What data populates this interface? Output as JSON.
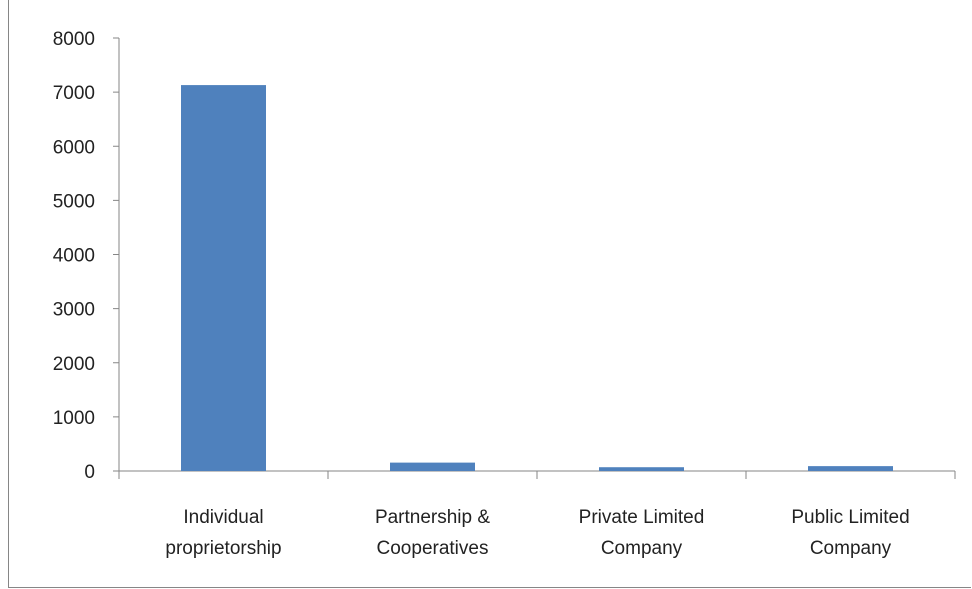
{
  "chart_data": {
    "type": "bar",
    "title": "",
    "xlabel": "",
    "ylabel": "",
    "categories": [
      [
        "Individual",
        "proprietorship"
      ],
      [
        "Partnership &",
        "Cooperatives"
      ],
      [
        "Private Limited",
        "Company"
      ],
      [
        "Public Limited",
        "Company"
      ]
    ],
    "values": [
      7130,
      155,
      70,
      90
    ],
    "ylim": [
      0,
      8000
    ],
    "yticks": [
      0,
      1000,
      2000,
      3000,
      4000,
      5000,
      6000,
      7000,
      8000
    ],
    "grid": false,
    "legend": "none",
    "bar_color": "#4F81BD",
    "axis_color": "#868686"
  }
}
